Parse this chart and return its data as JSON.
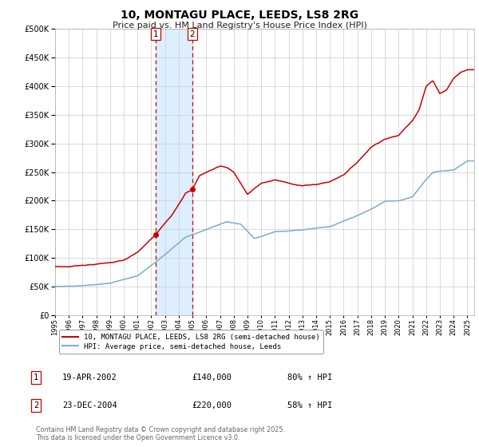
{
  "title": "10, MONTAGU PLACE, LEEDS, LS8 2RG",
  "subtitle": "Price paid vs. HM Land Registry's House Price Index (HPI)",
  "legend_line1": "10, MONTAGU PLACE, LEEDS, LS8 2RG (semi-detached house)",
  "legend_line2": "HPI: Average price, semi-detached house, Leeds",
  "footnote": "Contains HM Land Registry data © Crown copyright and database right 2025.\nThis data is licensed under the Open Government Licence v3.0.",
  "red_color": "#cc0000",
  "blue_color": "#7aaccd",
  "shade_color": "#ddeeff",
  "grid_color": "#cccccc",
  "sale1_date": 2002.3,
  "sale1_price": 140000,
  "sale1_label": "1",
  "sale2_date": 2004.98,
  "sale2_price": 220000,
  "sale2_label": "2",
  "table_rows": [
    {
      "num": "1",
      "date": "19-APR-2002",
      "price": "£140,000",
      "hpi": "80% ↑ HPI"
    },
    {
      "num": "2",
      "date": "23-DEC-2004",
      "price": "£220,000",
      "hpi": "58% ↑ HPI"
    }
  ],
  "ylim": [
    0,
    500000
  ],
  "yticks": [
    0,
    50000,
    100000,
    150000,
    200000,
    250000,
    300000,
    350000,
    400000,
    450000,
    500000
  ],
  "xlim": [
    1995,
    2025.5
  ],
  "xticks": [
    1995,
    1996,
    1997,
    1998,
    1999,
    2000,
    2001,
    2002,
    2003,
    2004,
    2005,
    2006,
    2007,
    2008,
    2009,
    2010,
    2011,
    2012,
    2013,
    2014,
    2015,
    2016,
    2017,
    2018,
    2019,
    2020,
    2021,
    2022,
    2023,
    2024,
    2025
  ]
}
